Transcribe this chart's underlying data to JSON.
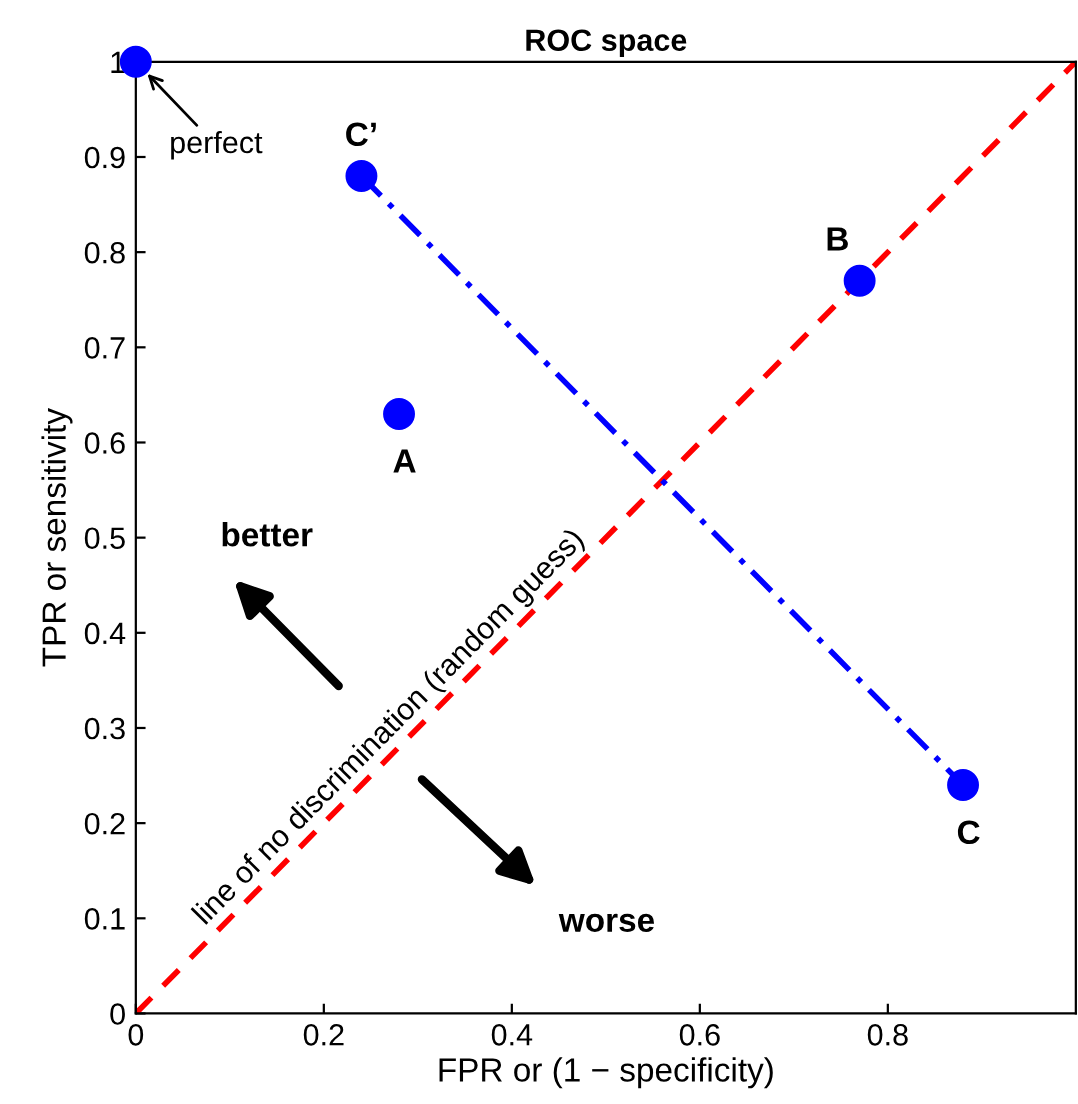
{
  "chart_data": {
    "type": "scatter",
    "title": "ROC space",
    "xlabel": "FPR or (1 − specificity)",
    "ylabel": "TPR or sensitivity",
    "xlim": [
      0,
      1
    ],
    "ylim": [
      0,
      1
    ],
    "xticks": [
      0,
      0.2,
      0.4,
      0.6,
      0.8
    ],
    "yticks": [
      0,
      0.1,
      0.2,
      0.3,
      0.4,
      0.5,
      0.6,
      0.7,
      0.8,
      0.9,
      1
    ],
    "grid": false,
    "legend": false,
    "series": [
      {
        "type": "line",
        "color": "#ff0000",
        "line_style": "dashed",
        "marker": "none",
        "x": [
          0,
          1
        ],
        "values": [
          0,
          1
        ]
      },
      {
        "type": "line",
        "color": "#0000ff",
        "line_style": "dashdot",
        "marker": "none",
        "x": [
          0.24,
          0.88
        ],
        "values": [
          0.88,
          0.24
        ]
      },
      {
        "color": "#0000ff",
        "marker": "circle",
        "x": [
          0,
          0.24,
          0.28,
          0.77,
          0.88
        ],
        "values": [
          1,
          0.88,
          0.63,
          0.77,
          0.24
        ]
      }
    ],
    "annotations": [
      {
        "text": "perfect",
        "x": 0,
        "y": 1
      },
      {
        "text": "C’",
        "x": 0.24,
        "y": 0.88
      },
      {
        "text": "A",
        "x": 0.28,
        "y": 0.63
      },
      {
        "text": "B",
        "x": 0.77,
        "y": 0.77
      },
      {
        "text": "C",
        "x": 0.88,
        "y": 0.24
      },
      "line of no discrimination (random guess)",
      "better",
      "worse"
    ]
  }
}
